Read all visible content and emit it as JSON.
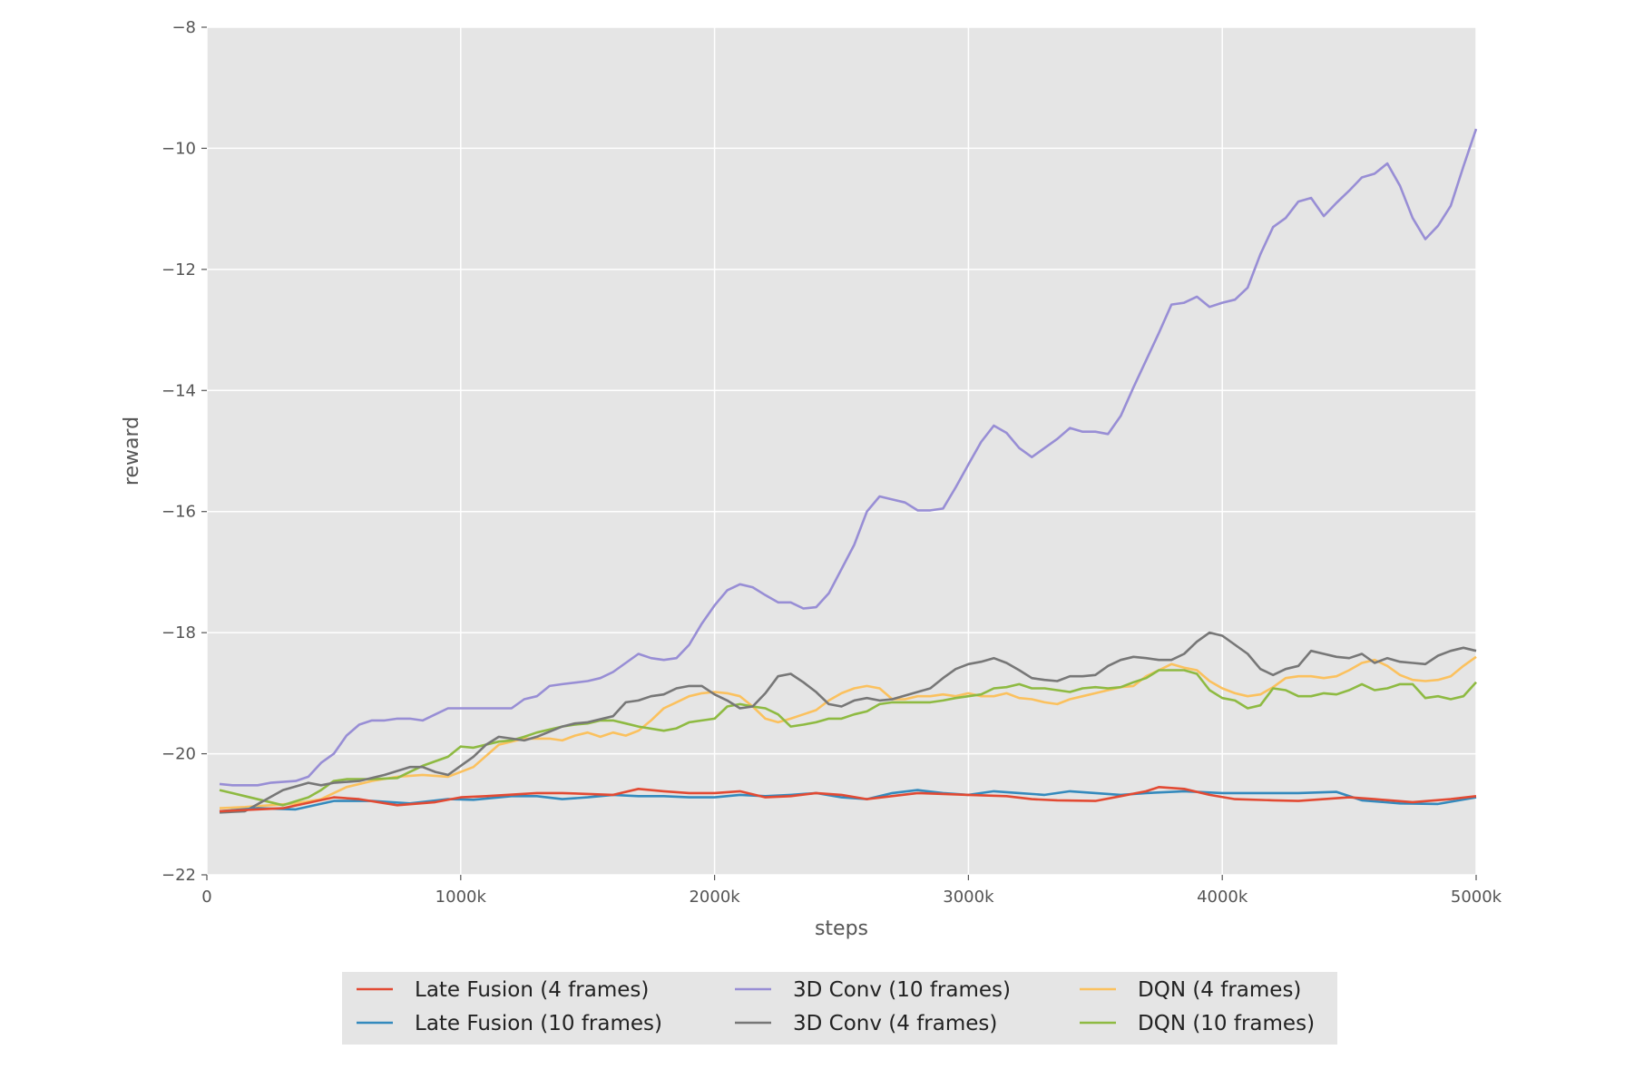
{
  "chart_data": {
    "type": "line",
    "title": "",
    "xlabel": "steps",
    "ylabel": "reward",
    "xlim": [
      0,
      5000
    ],
    "ylim": [
      -22,
      -8
    ],
    "x_unit": "k steps",
    "xticks": [
      0,
      1000,
      2000,
      3000,
      4000,
      5000
    ],
    "xtick_labels": [
      "0",
      "1000k",
      "2000k",
      "3000k",
      "4000k",
      "5000k"
    ],
    "yticks": [
      -22,
      -20,
      -18,
      -16,
      -14,
      -12,
      -10,
      -8
    ],
    "ytick_labels": [
      "−22",
      "−20",
      "−18",
      "−16",
      "−14",
      "−12",
      "−10",
      "−8"
    ],
    "grid": true,
    "legend_position": "bottom-center",
    "series": [
      {
        "name": "Late Fusion (4 frames)",
        "color": "#E24A33",
        "x": [
          50,
          300,
          500,
          600,
          750,
          900,
          1000,
          1100,
          1300,
          1400,
          1600,
          1700,
          1800,
          1900,
          2000,
          2100,
          2200,
          2300,
          2400,
          2500,
          2600,
          2800,
          3000,
          3150,
          3250,
          3350,
          3500,
          3600,
          3700,
          3750,
          3850,
          3950,
          4050,
          4200,
          4300,
          4400,
          4500,
          4600,
          4750,
          4900,
          5000
        ],
        "y": [
          -20.95,
          -20.9,
          -20.72,
          -20.75,
          -20.85,
          -20.8,
          -20.72,
          -20.7,
          -20.65,
          -20.65,
          -20.68,
          -20.58,
          -20.62,
          -20.65,
          -20.65,
          -20.62,
          -20.72,
          -20.7,
          -20.65,
          -20.68,
          -20.75,
          -20.65,
          -20.68,
          -20.7,
          -20.75,
          -20.77,
          -20.78,
          -20.7,
          -20.62,
          -20.55,
          -20.58,
          -20.68,
          -20.75,
          -20.77,
          -20.78,
          -20.75,
          -20.72,
          -20.75,
          -20.8,
          -20.75,
          -20.7
        ]
      },
      {
        "name": "Late Fusion (10 frames)",
        "color": "#348ABD",
        "x": [
          50,
          200,
          350,
          500,
          650,
          800,
          950,
          1050,
          1200,
          1300,
          1400,
          1500,
          1600,
          1700,
          1800,
          1900,
          2000,
          2100,
          2200,
          2300,
          2400,
          2500,
          2600,
          2700,
          2800,
          2900,
          3000,
          3100,
          3200,
          3300,
          3400,
          3500,
          3600,
          3700,
          3850,
          4000,
          4100,
          4200,
          4300,
          4450,
          4550,
          4700,
          4850,
          5000
        ],
        "y": [
          -20.95,
          -20.9,
          -20.92,
          -20.78,
          -20.78,
          -20.82,
          -20.75,
          -20.76,
          -20.7,
          -20.7,
          -20.75,
          -20.72,
          -20.68,
          -20.7,
          -20.7,
          -20.72,
          -20.72,
          -20.68,
          -20.7,
          -20.68,
          -20.65,
          -20.72,
          -20.75,
          -20.65,
          -20.6,
          -20.65,
          -20.68,
          -20.62,
          -20.65,
          -20.68,
          -20.62,
          -20.65,
          -20.68,
          -20.65,
          -20.62,
          -20.65,
          -20.65,
          -20.65,
          -20.65,
          -20.63,
          -20.77,
          -20.82,
          -20.83,
          -20.72
        ]
      },
      {
        "name": "3D Conv (10 frames)",
        "color": "#988ED5",
        "x": [
          50,
          100,
          200,
          250,
          350,
          400,
          450,
          500,
          550,
          600,
          650,
          700,
          750,
          800,
          850,
          900,
          950,
          1000,
          1100,
          1200,
          1250,
          1300,
          1350,
          1400,
          1500,
          1550,
          1600,
          1650,
          1700,
          1750,
          1800,
          1850,
          1900,
          1950,
          2000,
          2050,
          2100,
          2150,
          2200,
          2250,
          2300,
          2350,
          2400,
          2450,
          2500,
          2550,
          2600,
          2650,
          2700,
          2750,
          2800,
          2850,
          2900,
          2950,
          3000,
          3050,
          3100,
          3150,
          3200,
          3250,
          3300,
          3350,
          3400,
          3450,
          3500,
          3550,
          3600,
          3650,
          3700,
          3750,
          3800,
          3850,
          3900,
          3950,
          4000,
          4050,
          4100,
          4150,
          4200,
          4250,
          4300,
          4350,
          4400,
          4450,
          4500,
          4550,
          4600,
          4650,
          4700,
          4750,
          4800,
          4850,
          4900,
          4950,
          5000
        ],
        "y": [
          -20.5,
          -20.52,
          -20.52,
          -20.48,
          -20.45,
          -20.38,
          -20.15,
          -20.0,
          -19.7,
          -19.52,
          -19.45,
          -19.45,
          -19.42,
          -19.42,
          -19.45,
          -19.35,
          -19.25,
          -19.25,
          -19.25,
          -19.25,
          -19.1,
          -19.05,
          -18.88,
          -18.85,
          -18.8,
          -18.75,
          -18.65,
          -18.5,
          -18.35,
          -18.42,
          -18.45,
          -18.42,
          -18.2,
          -17.85,
          -17.55,
          -17.3,
          -17.2,
          -17.25,
          -17.38,
          -17.5,
          -17.5,
          -17.6,
          -17.58,
          -17.35,
          -16.95,
          -16.55,
          -16.0,
          -15.75,
          -15.8,
          -15.85,
          -15.98,
          -15.98,
          -15.95,
          -15.6,
          -15.22,
          -14.85,
          -14.58,
          -14.7,
          -14.95,
          -15.1,
          -14.95,
          -14.8,
          -14.62,
          -14.68,
          -14.68,
          -14.72,
          -14.42,
          -13.95,
          -13.5,
          -13.05,
          -12.58,
          -12.55,
          -12.45,
          -12.62,
          -12.55,
          -12.5,
          -12.3,
          -11.75,
          -11.3,
          -11.15,
          -10.88,
          -10.82,
          -11.12,
          -10.9,
          -10.7,
          -10.48,
          -10.42,
          -10.25,
          -10.62,
          -11.15,
          -11.5,
          -11.28,
          -10.95,
          -10.3,
          -9.68
        ]
      },
      {
        "name": "3D Conv (4 frames)",
        "color": "#777777",
        "x": [
          50,
          150,
          300,
          400,
          450,
          500,
          600,
          700,
          800,
          850,
          900,
          950,
          1050,
          1100,
          1150,
          1250,
          1300,
          1400,
          1450,
          1500,
          1600,
          1650,
          1700,
          1750,
          1800,
          1850,
          1900,
          1950,
          2000,
          2050,
          2100,
          2150,
          2200,
          2250,
          2300,
          2350,
          2400,
          2450,
          2500,
          2550,
          2600,
          2650,
          2700,
          2800,
          2850,
          2900,
          2950,
          3000,
          3050,
          3100,
          3150,
          3200,
          3250,
          3300,
          3350,
          3400,
          3450,
          3500,
          3550,
          3600,
          3650,
          3700,
          3750,
          3800,
          3850,
          3900,
          3950,
          4000,
          4050,
          4100,
          4150,
          4200,
          4250,
          4300,
          4350,
          4400,
          4450,
          4500,
          4550,
          4600,
          4650,
          4700,
          4750,
          4800,
          4850,
          4900,
          4950,
          5000
        ],
        "y": [
          -20.97,
          -20.95,
          -20.6,
          -20.48,
          -20.52,
          -20.48,
          -20.45,
          -20.35,
          -20.22,
          -20.22,
          -20.3,
          -20.35,
          -20.05,
          -19.85,
          -19.72,
          -19.78,
          -19.72,
          -19.55,
          -19.5,
          -19.48,
          -19.38,
          -19.15,
          -19.12,
          -19.05,
          -19.02,
          -18.92,
          -18.88,
          -18.88,
          -19.02,
          -19.12,
          -19.25,
          -19.22,
          -19.0,
          -18.72,
          -18.68,
          -18.82,
          -18.98,
          -19.18,
          -19.22,
          -19.12,
          -19.08,
          -19.12,
          -19.1,
          -18.98,
          -18.92,
          -18.75,
          -18.6,
          -18.52,
          -18.48,
          -18.42,
          -18.5,
          -18.62,
          -18.75,
          -18.78,
          -18.8,
          -18.72,
          -18.72,
          -18.7,
          -18.55,
          -18.45,
          -18.4,
          -18.42,
          -18.45,
          -18.45,
          -18.35,
          -18.15,
          -18.0,
          -18.05,
          -18.2,
          -18.35,
          -18.6,
          -18.7,
          -18.6,
          -18.55,
          -18.3,
          -18.35,
          -18.4,
          -18.42,
          -18.35,
          -18.5,
          -18.42,
          -18.48,
          -18.5,
          -18.52,
          -18.38,
          -18.3,
          -18.25,
          -18.3
        ]
      },
      {
        "name": "DQN (4 frames)",
        "color": "#FBC15E",
        "x": [
          50,
          150,
          250,
          350,
          450,
          550,
          650,
          750,
          850,
          950,
          1050,
          1150,
          1250,
          1300,
          1350,
          1400,
          1450,
          1500,
          1550,
          1600,
          1650,
          1700,
          1750,
          1800,
          1850,
          1900,
          1950,
          2000,
          2050,
          2100,
          2150,
          2200,
          2250,
          2300,
          2350,
          2400,
          2450,
          2500,
          2550,
          2600,
          2650,
          2700,
          2750,
          2800,
          2850,
          2900,
          2950,
          3000,
          3050,
          3100,
          3150,
          3200,
          3250,
          3300,
          3350,
          3400,
          3450,
          3500,
          3550,
          3600,
          3650,
          3700,
          3750,
          3800,
          3850,
          3900,
          3950,
          4000,
          4050,
          4100,
          4150,
          4200,
          4250,
          4300,
          4350,
          4400,
          4450,
          4500,
          4550,
          4600,
          4650,
          4700,
          4750,
          4800,
          4850,
          4900,
          4950,
          5000
        ],
        "y": [
          -20.9,
          -20.88,
          -20.85,
          -20.82,
          -20.75,
          -20.55,
          -20.45,
          -20.38,
          -20.35,
          -20.38,
          -20.22,
          -19.85,
          -19.75,
          -19.75,
          -19.75,
          -19.78,
          -19.7,
          -19.65,
          -19.72,
          -19.65,
          -19.7,
          -19.62,
          -19.45,
          -19.25,
          -19.15,
          -19.05,
          -19.0,
          -18.98,
          -19.0,
          -19.05,
          -19.22,
          -19.42,
          -19.48,
          -19.42,
          -19.35,
          -19.28,
          -19.12,
          -19.0,
          -18.92,
          -18.88,
          -18.92,
          -19.1,
          -19.1,
          -19.05,
          -19.05,
          -19.02,
          -19.05,
          -19.0,
          -19.05,
          -19.05,
          -19.0,
          -19.08,
          -19.1,
          -19.15,
          -19.18,
          -19.1,
          -19.05,
          -19.0,
          -18.95,
          -18.9,
          -18.88,
          -18.72,
          -18.62,
          -18.52,
          -18.58,
          -18.62,
          -18.8,
          -18.92,
          -19.0,
          -19.05,
          -19.02,
          -18.9,
          -18.75,
          -18.72,
          -18.72,
          -18.75,
          -18.72,
          -18.62,
          -18.5,
          -18.45,
          -18.55,
          -18.7,
          -18.78,
          -18.8,
          -18.78,
          -18.72,
          -18.55,
          -18.4
        ]
      },
      {
        "name": "DQN (10 frames)",
        "color": "#8EBA42",
        "x": [
          50,
          150,
          300,
          400,
          450,
          500,
          550,
          650,
          750,
          800,
          850,
          950,
          1000,
          1050,
          1150,
          1200,
          1250,
          1300,
          1350,
          1400,
          1450,
          1500,
          1550,
          1600,
          1650,
          1700,
          1800,
          1850,
          1900,
          1950,
          2000,
          2050,
          2100,
          2150,
          2200,
          2250,
          2300,
          2350,
          2400,
          2450,
          2500,
          2550,
          2600,
          2650,
          2700,
          2750,
          2800,
          2850,
          2900,
          2950,
          3000,
          3050,
          3100,
          3150,
          3200,
          3250,
          3300,
          3350,
          3400,
          3450,
          3500,
          3550,
          3600,
          3650,
          3700,
          3750,
          3800,
          3850,
          3900,
          3950,
          4000,
          4050,
          4100,
          4150,
          4200,
          4250,
          4300,
          4350,
          4400,
          4450,
          4500,
          4550,
          4600,
          4650,
          4700,
          4750,
          4800,
          4850,
          4900,
          4950,
          5000
        ],
        "y": [
          -20.6,
          -20.7,
          -20.85,
          -20.72,
          -20.6,
          -20.45,
          -20.42,
          -20.42,
          -20.4,
          -20.3,
          -20.2,
          -20.05,
          -19.88,
          -19.9,
          -19.8,
          -19.78,
          -19.72,
          -19.65,
          -19.6,
          -19.55,
          -19.52,
          -19.5,
          -19.45,
          -19.45,
          -19.5,
          -19.55,
          -19.62,
          -19.58,
          -19.48,
          -19.45,
          -19.42,
          -19.22,
          -19.18,
          -19.22,
          -19.25,
          -19.35,
          -19.55,
          -19.52,
          -19.48,
          -19.42,
          -19.42,
          -19.35,
          -19.3,
          -19.18,
          -19.15,
          -19.15,
          -19.15,
          -19.15,
          -19.12,
          -19.08,
          -19.05,
          -19.02,
          -18.92,
          -18.9,
          -18.85,
          -18.92,
          -18.92,
          -18.95,
          -18.98,
          -18.92,
          -18.9,
          -18.92,
          -18.9,
          -18.82,
          -18.75,
          -18.62,
          -18.62,
          -18.62,
          -18.68,
          -18.95,
          -19.08,
          -19.12,
          -19.25,
          -19.2,
          -18.92,
          -18.95,
          -19.05,
          -19.05,
          -19.0,
          -19.02,
          -18.95,
          -18.85,
          -18.95,
          -18.92,
          -18.85,
          -18.85,
          -19.08,
          -19.05,
          -19.1,
          -19.05,
          -18.82
        ]
      }
    ]
  }
}
